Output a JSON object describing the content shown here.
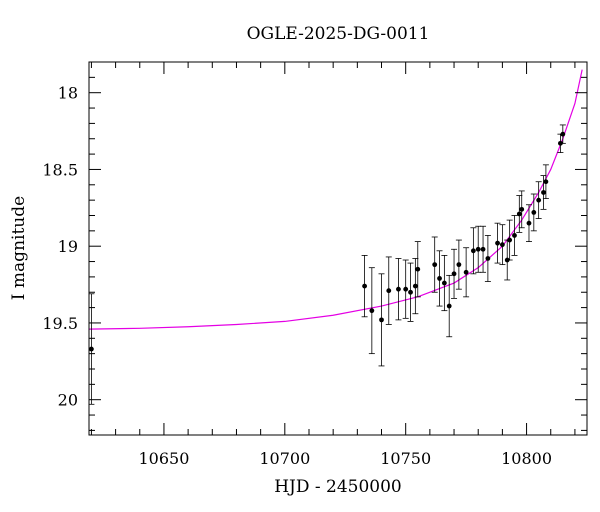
{
  "chart_data": {
    "type": "scatter",
    "title": "OGLE-2025-DG-0011",
    "xlabel": "HJD - 2450000",
    "ylabel": "I magnitude",
    "xlim": [
      10619,
      10825
    ],
    "ylim": [
      20.23,
      17.8
    ],
    "y_inverted": true,
    "grid": false,
    "x_ticks": [
      {
        "value": 10650,
        "label": "10650"
      },
      {
        "value": 10700,
        "label": "10700"
      },
      {
        "value": 10750,
        "label": "10750"
      },
      {
        "value": 10800,
        "label": "10800"
      }
    ],
    "y_ticks": [
      {
        "value": 18,
        "label": "18"
      },
      {
        "value": 18.5,
        "label": "18.5"
      },
      {
        "value": 19,
        "label": "19"
      },
      {
        "value": 19.5,
        "label": "19.5"
      },
      {
        "value": 20,
        "label": "20"
      }
    ],
    "x_minor_step": 10,
    "y_minor_step": 0.1,
    "model_color": "#e400e4",
    "point_color": "#000000",
    "model_curve": {
      "x": [
        10619,
        10640,
        10660,
        10680,
        10700,
        10720,
        10740,
        10755,
        10770,
        10780,
        10790,
        10798,
        10805,
        10810,
        10815,
        10820,
        10823
      ],
      "y": [
        19.54,
        19.535,
        19.525,
        19.51,
        19.49,
        19.45,
        19.39,
        19.33,
        19.24,
        19.14,
        19.0,
        18.83,
        18.65,
        18.5,
        18.3,
        18.07,
        17.85
      ]
    },
    "points": [
      {
        "x": 10620,
        "y": 19.67,
        "err": 0.36
      },
      {
        "x": 10733,
        "y": 19.26,
        "err": 0.2
      },
      {
        "x": 10736,
        "y": 19.42,
        "err": 0.28
      },
      {
        "x": 10740,
        "y": 19.48,
        "err": 0.3
      },
      {
        "x": 10743,
        "y": 19.29,
        "err": 0.22
      },
      {
        "x": 10747,
        "y": 19.28,
        "err": 0.2
      },
      {
        "x": 10750,
        "y": 19.28,
        "err": 0.19
      },
      {
        "x": 10752,
        "y": 19.3,
        "err": 0.19
      },
      {
        "x": 10754,
        "y": 19.26,
        "err": 0.18
      },
      {
        "x": 10755,
        "y": 19.15,
        "err": 0.18
      },
      {
        "x": 10762,
        "y": 19.12,
        "err": 0.18
      },
      {
        "x": 10764,
        "y": 19.21,
        "err": 0.18
      },
      {
        "x": 10766,
        "y": 19.24,
        "err": 0.18
      },
      {
        "x": 10768,
        "y": 19.39,
        "err": 0.2
      },
      {
        "x": 10770,
        "y": 19.18,
        "err": 0.16
      },
      {
        "x": 10772,
        "y": 19.12,
        "err": 0.16
      },
      {
        "x": 10775,
        "y": 19.17,
        "err": 0.16
      },
      {
        "x": 10778,
        "y": 19.03,
        "err": 0.15
      },
      {
        "x": 10780,
        "y": 19.02,
        "err": 0.15
      },
      {
        "x": 10782,
        "y": 19.02,
        "err": 0.15
      },
      {
        "x": 10784,
        "y": 19.08,
        "err": 0.15
      },
      {
        "x": 10788,
        "y": 18.98,
        "err": 0.13
      },
      {
        "x": 10790,
        "y": 18.99,
        "err": 0.13
      },
      {
        "x": 10792,
        "y": 19.09,
        "err": 0.13
      },
      {
        "x": 10793,
        "y": 18.96,
        "err": 0.13
      },
      {
        "x": 10795,
        "y": 18.93,
        "err": 0.13
      },
      {
        "x": 10797,
        "y": 18.79,
        "err": 0.12
      },
      {
        "x": 10798,
        "y": 18.76,
        "err": 0.12
      },
      {
        "x": 10801,
        "y": 18.85,
        "err": 0.12
      },
      {
        "x": 10803,
        "y": 18.78,
        "err": 0.12
      },
      {
        "x": 10805,
        "y": 18.7,
        "err": 0.12
      },
      {
        "x": 10807,
        "y": 18.65,
        "err": 0.11
      },
      {
        "x": 10808,
        "y": 18.58,
        "err": 0.11
      },
      {
        "x": 10814,
        "y": 18.33,
        "err": 0.06
      },
      {
        "x": 10815,
        "y": 18.27,
        "err": 0.06
      }
    ]
  }
}
